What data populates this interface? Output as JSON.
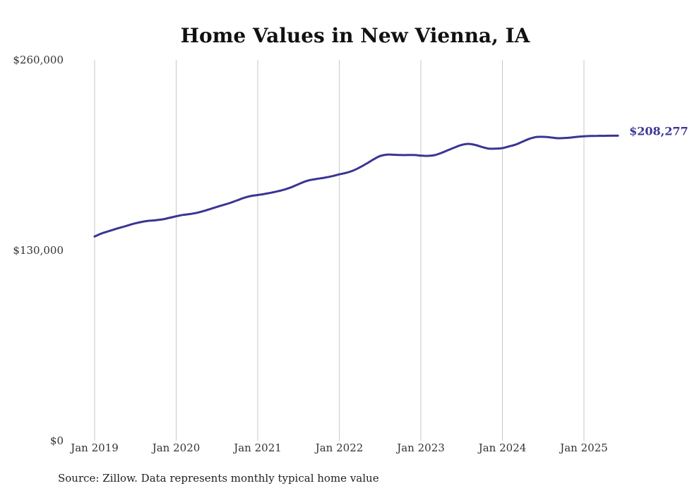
{
  "chart_data": {
    "type": "line",
    "title": "Home Values in New Vienna, IA",
    "xlabel": "",
    "ylabel": "",
    "ylim": [
      0,
      260000
    ],
    "y_ticks": [
      {
        "value": 0,
        "label": "$0"
      },
      {
        "value": 130000,
        "label": "$130,000"
      },
      {
        "value": 260000,
        "label": "$260,000"
      }
    ],
    "x_ticks": [
      {
        "value": "2019-01",
        "label": "Jan 2019"
      },
      {
        "value": "2020-01",
        "label": "Jan 2020"
      },
      {
        "value": "2021-01",
        "label": "Jan 2021"
      },
      {
        "value": "2022-01",
        "label": "Jan 2022"
      },
      {
        "value": "2023-01",
        "label": "Jan 2023"
      },
      {
        "value": "2024-01",
        "label": "Jan 2024"
      },
      {
        "value": "2025-01",
        "label": "Jan 2025"
      }
    ],
    "grid": "vertical",
    "line_color": "#3a3593",
    "end_label": "$208,277",
    "series": [
      {
        "x": [
          "2019-01",
          "2019-02",
          "2019-03",
          "2019-04",
          "2019-05",
          "2019-06",
          "2019-07",
          "2019-08",
          "2019-09",
          "2019-10",
          "2019-11",
          "2019-12",
          "2020-01",
          "2020-02",
          "2020-03",
          "2020-04",
          "2020-05",
          "2020-06",
          "2020-07",
          "2020-08",
          "2020-09",
          "2020-10",
          "2020-11",
          "2020-12",
          "2021-01",
          "2021-02",
          "2021-03",
          "2021-04",
          "2021-05",
          "2021-06",
          "2021-07",
          "2021-08",
          "2021-09",
          "2021-10",
          "2021-11",
          "2021-12",
          "2022-01",
          "2022-02",
          "2022-03",
          "2022-04",
          "2022-05",
          "2022-06",
          "2022-07",
          "2022-08",
          "2022-09",
          "2022-10",
          "2022-11",
          "2022-12",
          "2023-01",
          "2023-02",
          "2023-03",
          "2023-04",
          "2023-05",
          "2023-06",
          "2023-07",
          "2023-08",
          "2023-09",
          "2023-10",
          "2023-11",
          "2023-12",
          "2024-01",
          "2024-02",
          "2024-03",
          "2024-04",
          "2024-05",
          "2024-06",
          "2024-07",
          "2024-08",
          "2024-09",
          "2024-10",
          "2024-11",
          "2024-12",
          "2025-01",
          "2025-02",
          "2025-03",
          "2025-04",
          "2025-05",
          "2025-06"
        ],
        "values": [
          139500,
          141500,
          143000,
          144500,
          145800,
          147200,
          148500,
          149500,
          150200,
          150600,
          151200,
          152200,
          153300,
          154200,
          154800,
          155600,
          156800,
          158200,
          159700,
          161100,
          162500,
          164200,
          165900,
          167100,
          167800,
          168500,
          169400,
          170400,
          171600,
          173200,
          175200,
          177100,
          178300,
          179000,
          179800,
          180700,
          181900,
          182900,
          184400,
          186600,
          189200,
          192000,
          194400,
          195400,
          195300,
          195100,
          195100,
          195100,
          194700,
          194500,
          195000,
          196500,
          198400,
          200300,
          202000,
          202700,
          202000,
          200600,
          199500,
          199500,
          199800,
          201000,
          202300,
          204300,
          206200,
          207400,
          207500,
          207200,
          206600,
          206700,
          207000,
          207500,
          207900,
          208100,
          208200,
          208200,
          208300,
          208277
        ]
      }
    ],
    "source": "Source: Zillow. Data represents monthly typical home value"
  }
}
